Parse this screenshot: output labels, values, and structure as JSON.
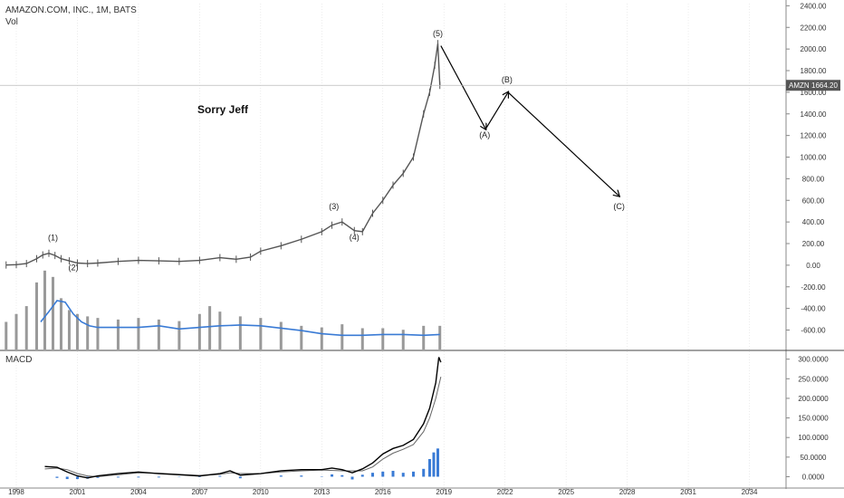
{
  "header": {
    "symbol_line": "AMAZON.COM, INC., 1M, BATS",
    "vol_label": "Vol",
    "macd_label": "MACD"
  },
  "price_tag": {
    "ticker": "AMZN",
    "value": "1664.20",
    "price": 1664.2,
    "color": "#555555"
  },
  "annotation": {
    "text": "Sorry Jeff"
  },
  "colors": {
    "candle": "#555555",
    "volume_bar": "#999999",
    "volume_ma": "#3a7bd5",
    "macd_line": "#000000",
    "signal_line": "#666666",
    "histogram": "#3a7bd5",
    "arrow": "#000000",
    "grid": "#e0e0e0",
    "axis": "#888888"
  },
  "chart_data": [
    {
      "type": "line",
      "name_on_chart": "AMAZON.COM, INC., 1M, BATS",
      "y_ticks": [
        2400,
        2200,
        2000,
        1800,
        1600,
        1400,
        1200,
        1000,
        800,
        600,
        400,
        200,
        0,
        -200,
        -400,
        -600
      ],
      "y_tick_labels": [
        "2400.00",
        "2200.00",
        "2000.00",
        "1800.00",
        "1600.00",
        "1400.00",
        "1200.00",
        "1000.00",
        "800.00",
        "600.00",
        "400.00",
        "200.00",
        "0.00",
        "-200.00",
        "-400.00",
        "-600.00"
      ],
      "ylim": [
        -780,
        2420
      ],
      "x_ticks": [
        1998,
        2001,
        2004,
        2007,
        2010,
        2013,
        2016,
        2019,
        2022,
        2025,
        2028,
        2031,
        2034
      ],
      "x_tick_labels": [
        "1998",
        "2001",
        "2004",
        "2007",
        "2010",
        "2013",
        "2016",
        "2019",
        "2022",
        "2025",
        "2028",
        "2031",
        "2034"
      ],
      "xlim": [
        1997.2,
        2035.8
      ],
      "price": {
        "x": [
          1997.5,
          1998,
          1998.5,
          1999,
          1999.3,
          1999.6,
          1999.9,
          2000.2,
          2000.6,
          2001,
          2001.5,
          2002,
          2003,
          2004,
          2005,
          2006,
          2007,
          2008,
          2008.8,
          2009.5,
          2010,
          2011,
          2012,
          2013,
          2013.5,
          2014,
          2014.6,
          2015,
          2015.5,
          2016,
          2016.5,
          2017,
          2017.5,
          2018,
          2018.3,
          2018.55,
          2018.7,
          2018.8
        ],
        "y": [
          2,
          5,
          15,
          60,
          95,
          110,
          90,
          60,
          40,
          20,
          15,
          20,
          35,
          45,
          40,
          35,
          45,
          70,
          55,
          75,
          130,
          180,
          240,
          310,
          370,
          400,
          320,
          310,
          480,
          600,
          740,
          850,
          1000,
          1400,
          1600,
          1850,
          2050,
          1664
        ]
      },
      "wave_labels": [
        {
          "text": "(1)",
          "x": 1999.8,
          "y": 228
        },
        {
          "text": "(2)",
          "x": 2000.8,
          "y": -45
        },
        {
          "text": "(3)",
          "x": 2013.6,
          "y": 520
        },
        {
          "text": "(4)",
          "x": 2014.6,
          "y": 235
        },
        {
          "text": "(5)",
          "x": 2018.7,
          "y": 2120
        },
        {
          "text": "(A)",
          "x": 2021.0,
          "y": 1180
        },
        {
          "text": "(B)",
          "x": 2022.1,
          "y": 1690
        },
        {
          "text": "(C)",
          "x": 2027.6,
          "y": 520
        }
      ],
      "projection": {
        "x": [
          2018.85,
          2021.05,
          2022.15,
          2027.6
        ],
        "y": [
          2030,
          1260,
          1600,
          640
        ]
      }
    },
    {
      "type": "bar",
      "name_on_chart": "Vol",
      "x": [
        1997.5,
        1998,
        1998.5,
        1999,
        1999.4,
        1999.8,
        2000.2,
        2000.6,
        2001,
        2001.5,
        2002,
        2003,
        2004,
        2005,
        2006,
        2007,
        2007.5,
        2008,
        2009,
        2010,
        2011,
        2012,
        2013,
        2014,
        2015,
        2016,
        2017,
        2018,
        2018.8
      ],
      "values": [
        0.35,
        0.45,
        0.55,
        0.85,
        1.0,
        0.92,
        0.65,
        0.5,
        0.45,
        0.42,
        0.4,
        0.38,
        0.4,
        0.38,
        0.36,
        0.45,
        0.55,
        0.48,
        0.42,
        0.4,
        0.35,
        0.3,
        0.28,
        0.32,
        0.27,
        0.27,
        0.25,
        0.3,
        0.3
      ],
      "moving_average": {
        "x": [
          1999.2,
          1999.6,
          2000,
          2000.4,
          2000.8,
          2001.2,
          2001.6,
          2002,
          2003,
          2004,
          2005,
          2006,
          2007,
          2008,
          2009,
          2010,
          2011,
          2012,
          2013,
          2014,
          2015,
          2016,
          2017,
          2018,
          2018.8
        ],
        "y": [
          0.35,
          0.48,
          0.62,
          0.6,
          0.45,
          0.35,
          0.3,
          0.28,
          0.28,
          0.28,
          0.3,
          0.26,
          0.28,
          0.3,
          0.31,
          0.3,
          0.27,
          0.24,
          0.2,
          0.18,
          0.18,
          0.19,
          0.19,
          0.18,
          0.19
        ]
      }
    },
    {
      "type": "line",
      "name_on_chart": "MACD",
      "y_ticks": [
        300000,
        250000,
        200000,
        150000,
        100000,
        50000,
        0
      ],
      "y_tick_labels": [
        "300.0000",
        "250.0000",
        "200.0000",
        "150.0000",
        "100.0000",
        "50.0000",
        "0.0000"
      ],
      "ylim": [
        -22000,
        320000
      ],
      "macd": {
        "x": [
          1999.4,
          2000,
          2000.5,
          2001,
          2001.5,
          2002,
          2003,
          2004,
          2005,
          2006,
          2007,
          2008,
          2008.5,
          2009,
          2010,
          2011,
          2012,
          2013,
          2013.5,
          2014,
          2014.5,
          2015,
          2015.5,
          2016,
          2016.5,
          2017,
          2017.5,
          2018,
          2018.3,
          2018.6,
          2018.75,
          2018.85
        ],
        "y": [
          26000,
          24000,
          12000,
          2000,
          -3000,
          2000,
          8000,
          12000,
          8000,
          5000,
          2000,
          8000,
          15000,
          4000,
          8000,
          15000,
          18000,
          18000,
          22000,
          18000,
          10000,
          20000,
          35000,
          58000,
          72000,
          80000,
          95000,
          135000,
          175000,
          240000,
          305000,
          292000
        ]
      },
      "signal": {
        "x": [
          1999.4,
          2000,
          2000.5,
          2001,
          2001.5,
          2002,
          2003,
          2004,
          2005,
          2006,
          2007,
          2008,
          2008.5,
          2009,
          2010,
          2011,
          2012,
          2013,
          2014,
          2015,
          2015.5,
          2016,
          2016.5,
          2017,
          2017.5,
          2018,
          2018.3,
          2018.6,
          2018.85
        ],
        "y": [
          20000,
          22000,
          18000,
          8000,
          2000,
          0,
          5000,
          10000,
          9000,
          6000,
          3000,
          6000,
          10000,
          8000,
          8000,
          12000,
          15000,
          17000,
          15000,
          15000,
          25000,
          45000,
          60000,
          70000,
          82000,
          115000,
          150000,
          200000,
          255000
        ]
      },
      "histogram": {
        "x": [
          2000,
          2000.5,
          2001,
          2001.5,
          2002,
          2003,
          2004,
          2005,
          2006,
          2007,
          2008,
          2009,
          2010,
          2011,
          2012,
          2013,
          2013.5,
          2014,
          2014.5,
          2015,
          2015.5,
          2016,
          2016.5,
          2017,
          2017.5,
          2018,
          2018.3,
          2018.5,
          2018.7
        ],
        "y": [
          -3000,
          -6000,
          -6000,
          -5000,
          -3000,
          -2000,
          -2000,
          -2000,
          -1000,
          -1000,
          2000,
          -4000,
          0,
          3000,
          3000,
          1000,
          6000,
          4000,
          -7000,
          5000,
          10000,
          13000,
          15000,
          10000,
          13000,
          20000,
          45000,
          62000,
          72000
        ]
      }
    }
  ]
}
